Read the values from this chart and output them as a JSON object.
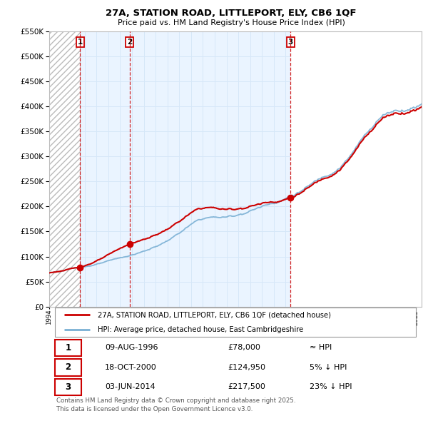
{
  "title": "27A, STATION ROAD, LITTLEPORT, ELY, CB6 1QF",
  "subtitle": "Price paid vs. HM Land Registry's House Price Index (HPI)",
  "legend_property": "27A, STATION ROAD, LITTLEPORT, ELY, CB6 1QF (detached house)",
  "legend_hpi": "HPI: Average price, detached house, East Cambridgeshire",
  "transactions": [
    {
      "label": "1",
      "date": "09-AUG-1996",
      "price": 78000,
      "hpi_rel": "≈ HPI",
      "x_year": 1996.61
    },
    {
      "label": "2",
      "date": "18-OCT-2000",
      "price": 124950,
      "hpi_rel": "5% ↓ HPI",
      "x_year": 2000.8
    },
    {
      "label": "3",
      "date": "03-JUN-2014",
      "price": 217500,
      "hpi_rel": "23% ↓ HPI",
      "x_year": 2014.42
    }
  ],
  "ylim": [
    0,
    550000
  ],
  "xlim_start": 1994.0,
  "xlim_end": 2025.5,
  "property_color": "#cc0000",
  "hpi_color": "#7ab0d4",
  "vline_color": "#cc0000",
  "bg_shaded_color": "#ddeeff",
  "grid_color": "#ccddee",
  "footer_text": "Contains HM Land Registry data © Crown copyright and database right 2025.\nThis data is licensed under the Open Government Licence v3.0."
}
